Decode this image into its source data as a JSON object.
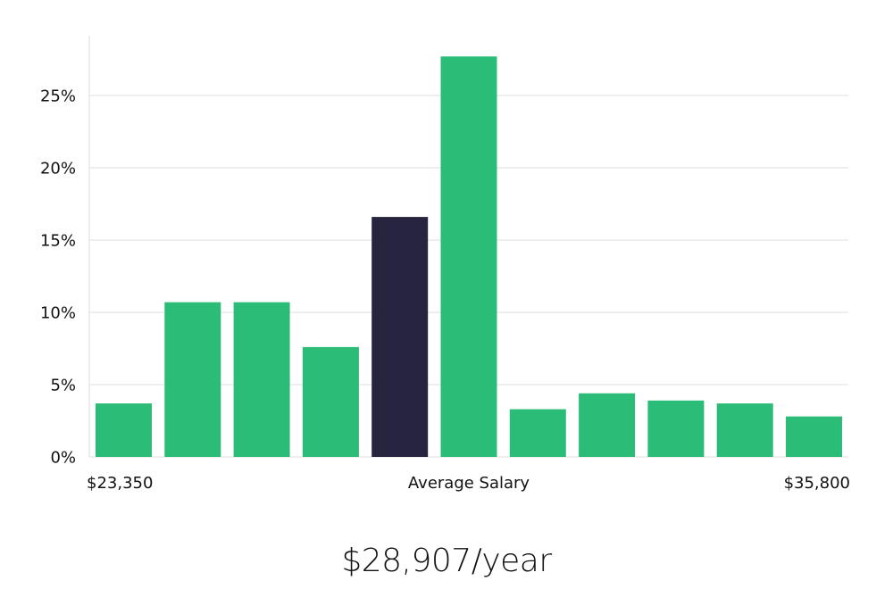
{
  "chart_data": {
    "type": "bar",
    "title": "",
    "xlabel": "Average Salary",
    "ylabel": "",
    "ylim": [
      0,
      30
    ],
    "y_ticks": [
      {
        "value": 0,
        "label": "0%"
      },
      {
        "value": 5,
        "label": "5%"
      },
      {
        "value": 10,
        "label": "10%"
      },
      {
        "value": 15,
        "label": "15%"
      },
      {
        "value": 20,
        "label": "20%"
      },
      {
        "value": 25,
        "label": "25%"
      }
    ],
    "x_labels": {
      "min": "$23,350",
      "center": "Average Salary",
      "max": "$35,800"
    },
    "values": [
      3.7,
      10.7,
      10.7,
      7.6,
      16.6,
      27.7,
      3.3,
      4.4,
      3.9,
      3.7,
      2.8
    ],
    "highlight_index": 4,
    "colors": {
      "bar": "#2bbd77",
      "highlight": "#27243f",
      "grid": "#e3e3e6"
    }
  },
  "summary": {
    "average_salary": "$28,907/year"
  }
}
